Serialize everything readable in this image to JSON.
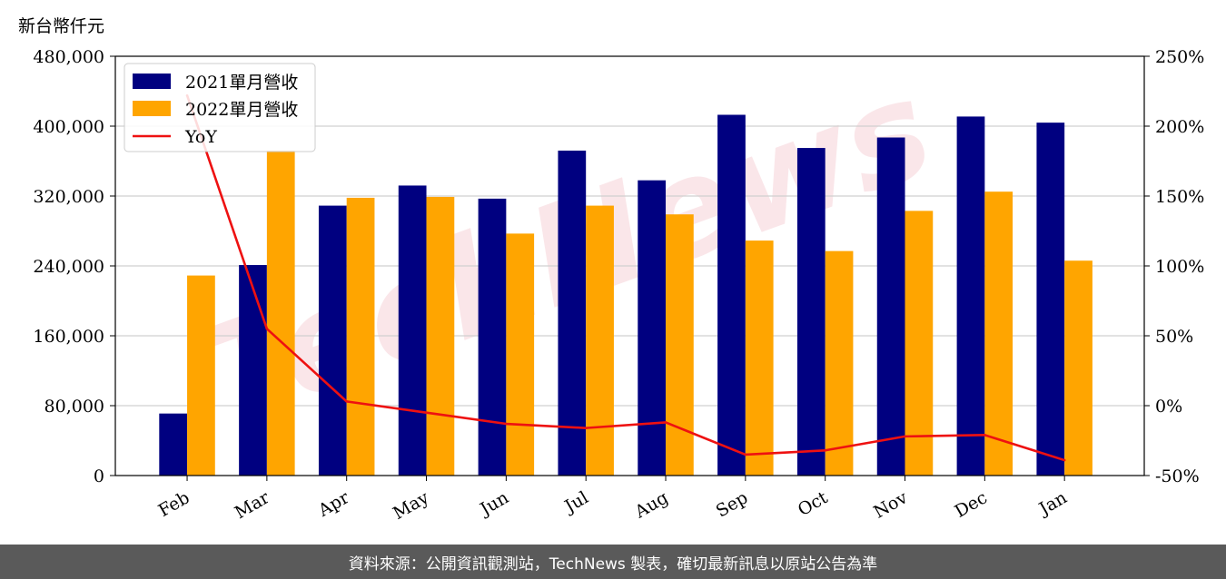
{
  "unit_label": "新台幣仟元",
  "footer_text": "資料來源：公開資訊觀測站，TechNews 製表，確切最新訊息以原站公告為準",
  "watermark_text": "TechNews",
  "colors": {
    "series_2021": "#000080",
    "series_2022": "#ffa500",
    "yoy": "#ee1111"
  },
  "chart_data": {
    "type": "bar",
    "categories": [
      "Feb",
      "Mar",
      "Apr",
      "May",
      "Jun",
      "Jul",
      "Aug",
      "Sep",
      "Oct",
      "Nov",
      "Dec",
      "Jan"
    ],
    "series": [
      {
        "name": "2021單月營收",
        "type": "bar",
        "axis": "left",
        "values": [
          71000,
          241000,
          309000,
          332000,
          317000,
          372000,
          338000,
          413000,
          375000,
          387000,
          411000,
          404000
        ]
      },
      {
        "name": "2022單月營收",
        "type": "bar",
        "axis": "left",
        "values": [
          229000,
          372000,
          318000,
          319000,
          277000,
          309000,
          299000,
          269000,
          257000,
          303000,
          325000,
          246000
        ]
      },
      {
        "name": "YoY",
        "type": "line",
        "axis": "right",
        "values": [
          222,
          55,
          3,
          -5,
          -13,
          -16,
          -12,
          -35,
          -32,
          -22,
          -21,
          -39
        ]
      }
    ],
    "y_left": {
      "min": 0,
      "max": 480000,
      "ticks": [
        "0",
        "80,000",
        "160,000",
        "240,000",
        "320,000",
        "400,000",
        "480,000"
      ]
    },
    "y_right": {
      "min": -50,
      "max": 250,
      "ticks": [
        "-50%",
        "0%",
        "50%",
        "100%",
        "150%",
        "200%",
        "250%"
      ]
    },
    "grid": "horizontal",
    "legend": "top-left"
  }
}
